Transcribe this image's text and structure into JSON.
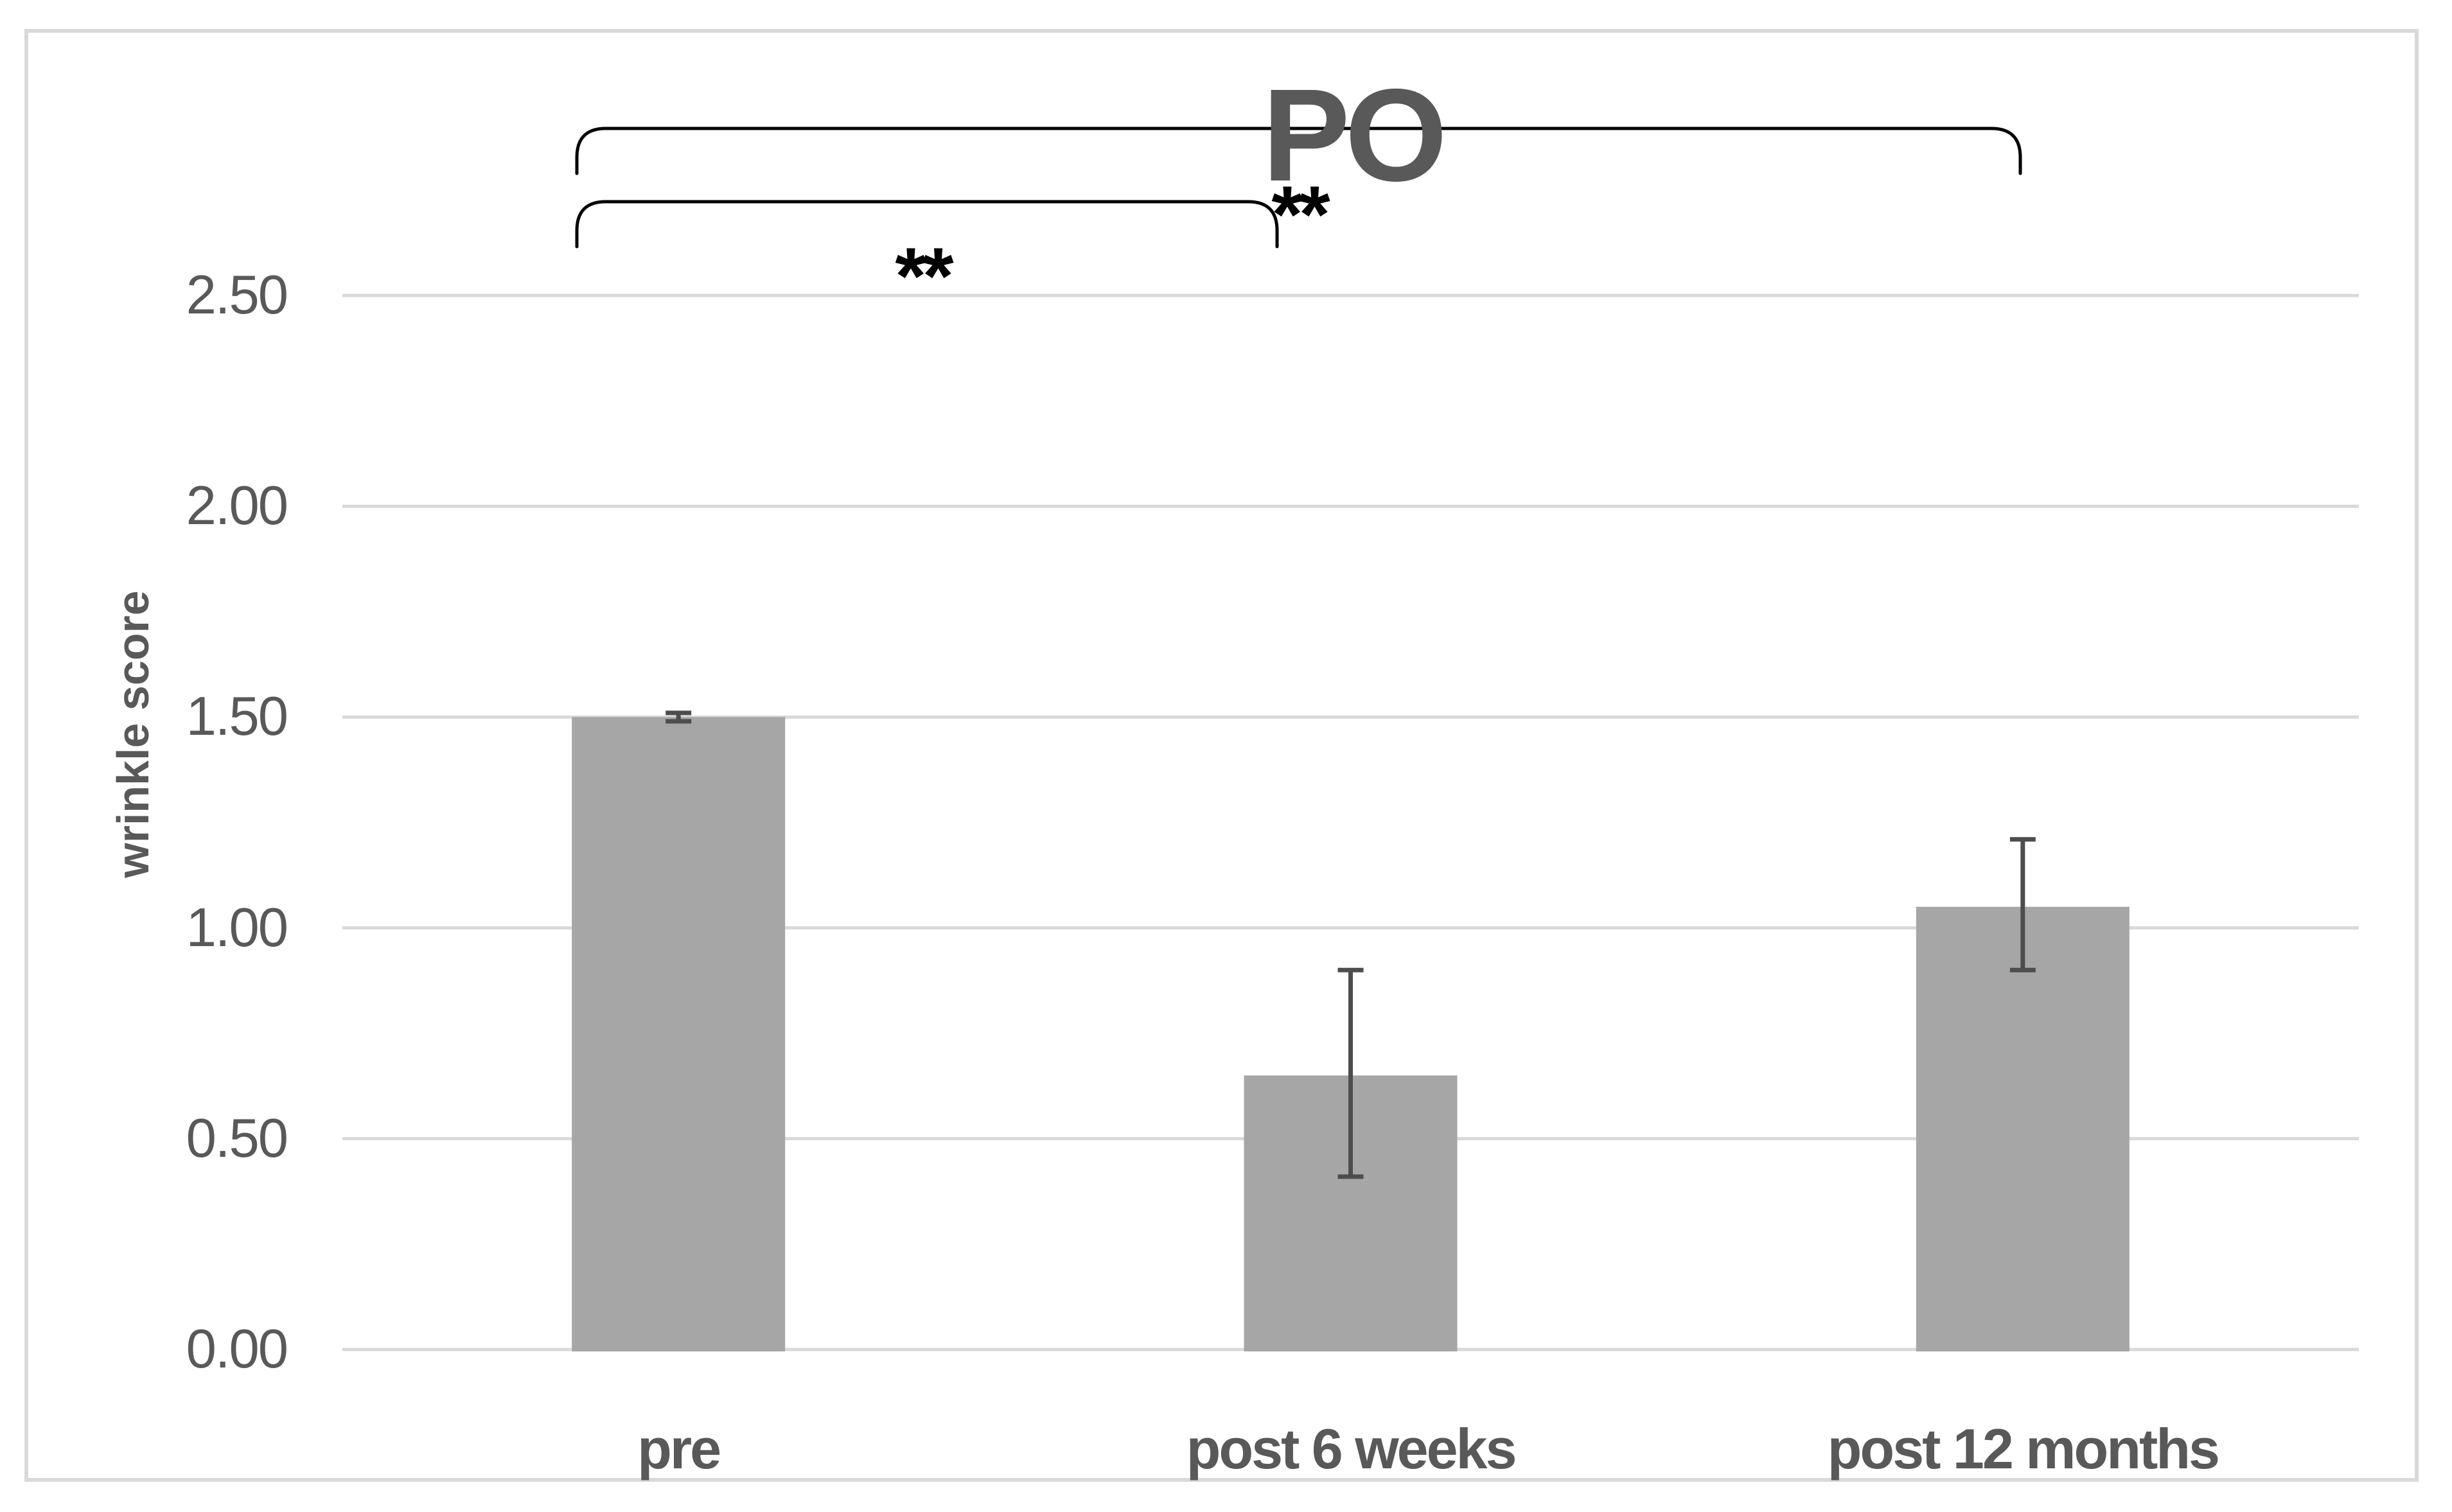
{
  "chart_data": {
    "type": "bar",
    "title": "PO",
    "xlabel": "",
    "ylabel": "wrinkle score",
    "categories": [
      "pre",
      "post 6 weeks",
      "post 12 months"
    ],
    "values": [
      1.5,
      0.65,
      1.05
    ],
    "error_low": [
      1.49,
      0.41,
      0.9
    ],
    "error_high": [
      1.51,
      0.9,
      1.21
    ],
    "ylim": [
      0,
      2.75
    ],
    "yticks": [
      0.0,
      0.5,
      1.0,
      1.5,
      2.0,
      2.5
    ],
    "ytick_labels": [
      "0.00",
      "0.50",
      "1.00",
      "1.50",
      "2.00",
      "2.50"
    ],
    "grid": "horizontal-only",
    "legend": "none",
    "significance": [
      {
        "from": "pre",
        "to": "post 6 weeks",
        "label": "**"
      },
      {
        "from": "pre",
        "to": "post 12 months",
        "label": "**"
      }
    ]
  },
  "colors": {
    "bar_fill": "#a6a6a6",
    "error_bar": "#4d4d4d",
    "gridline": "#d9d9d9",
    "frame_border": "#d9d9d9",
    "text": "#595959",
    "annotation": "#000000"
  }
}
